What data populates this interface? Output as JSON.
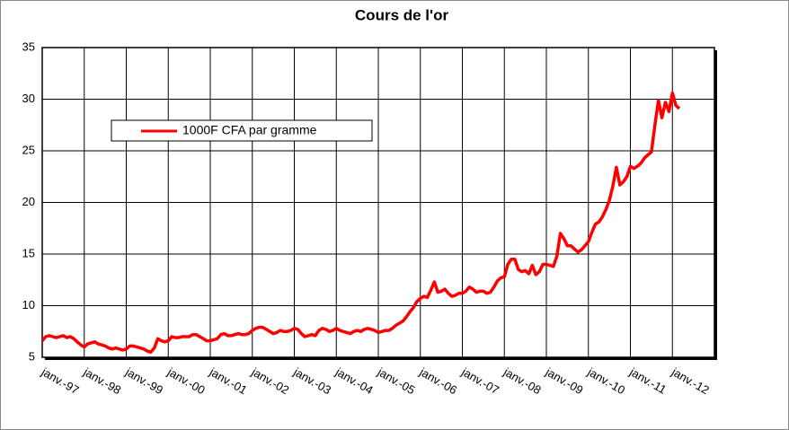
{
  "chart_data": {
    "type": "line",
    "title": "Cours de l'or",
    "categories": [
      "janv.-97",
      null,
      null,
      null,
      null,
      null,
      null,
      null,
      null,
      null,
      null,
      null,
      "janv.-98",
      null,
      null,
      null,
      null,
      null,
      null,
      null,
      null,
      null,
      null,
      null,
      "janv.-99",
      null,
      null,
      null,
      null,
      null,
      null,
      null,
      null,
      null,
      null,
      null,
      "janv.-00",
      null,
      null,
      null,
      null,
      null,
      null,
      null,
      null,
      null,
      null,
      null,
      "janv.-01",
      null,
      null,
      null,
      null,
      null,
      null,
      null,
      null,
      null,
      null,
      null,
      "janv.-02",
      null,
      null,
      null,
      null,
      null,
      null,
      null,
      null,
      null,
      null,
      null,
      "janv.-03",
      null,
      null,
      null,
      null,
      null,
      null,
      null,
      null,
      null,
      null,
      null,
      "janv.-04",
      null,
      null,
      null,
      null,
      null,
      null,
      null,
      null,
      null,
      null,
      null,
      "janv.-05",
      null,
      null,
      null,
      null,
      null,
      null,
      null,
      null,
      null,
      null,
      null,
      "janv.-06",
      null,
      null,
      null,
      null,
      null,
      null,
      null,
      null,
      null,
      null,
      null,
      "janv.-07",
      null,
      null,
      null,
      null,
      null,
      null,
      null,
      null,
      null,
      null,
      null,
      "janv.-08",
      null,
      null,
      null,
      null,
      null,
      null,
      null,
      null,
      null,
      null,
      null,
      "janv.-09",
      null,
      null,
      null,
      null,
      null,
      null,
      null,
      null,
      null,
      null,
      null,
      "janv.-10",
      null,
      null,
      null,
      null,
      null,
      null,
      null,
      null,
      null,
      null,
      null,
      "janv.-11",
      null,
      null,
      null,
      null,
      null,
      null,
      null,
      null,
      null,
      null,
      null,
      "janv.-12",
      null,
      null,
      null,
      null,
      null,
      null,
      null,
      null,
      null,
      null,
      null
    ],
    "series": [
      {
        "name": "1000F CFA par gramme",
        "color": "#ff0000",
        "values": [
          6.6,
          7.0,
          7.1,
          7.0,
          6.9,
          7.0,
          7.1,
          6.9,
          7.0,
          6.8,
          6.5,
          6.2,
          6.0,
          6.3,
          6.4,
          6.5,
          6.3,
          6.2,
          6.1,
          5.9,
          5.8,
          5.9,
          5.8,
          5.7,
          5.8,
          6.1,
          6.1,
          6.0,
          5.9,
          5.8,
          5.6,
          5.5,
          5.9,
          6.8,
          6.6,
          6.5,
          6.6,
          7.0,
          6.9,
          6.9,
          7.0,
          7.0,
          7.0,
          7.2,
          7.2,
          7.0,
          6.8,
          6.6,
          6.6,
          6.7,
          6.8,
          7.2,
          7.3,
          7.1,
          7.1,
          7.2,
          7.3,
          7.2,
          7.2,
          7.3,
          7.6,
          7.8,
          7.9,
          7.9,
          7.7,
          7.5,
          7.3,
          7.4,
          7.6,
          7.5,
          7.5,
          7.6,
          7.8,
          7.7,
          7.3,
          7.0,
          7.1,
          7.2,
          7.1,
          7.6,
          7.8,
          7.7,
          7.5,
          7.6,
          7.8,
          7.6,
          7.5,
          7.4,
          7.3,
          7.5,
          7.6,
          7.5,
          7.7,
          7.8,
          7.7,
          7.6,
          7.4,
          7.5,
          7.6,
          7.6,
          7.8,
          8.1,
          8.3,
          8.5,
          8.9,
          9.4,
          9.8,
          10.4,
          10.7,
          10.9,
          10.8,
          11.5,
          12.3,
          11.3,
          11.4,
          11.6,
          11.2,
          10.9,
          11.0,
          11.2,
          11.2,
          11.4,
          11.8,
          11.6,
          11.3,
          11.4,
          11.4,
          11.2,
          11.3,
          11.8,
          12.4,
          12.7,
          12.8,
          14.0,
          14.5,
          14.5,
          13.5,
          13.3,
          13.4,
          13.1,
          13.9,
          13.0,
          13.3,
          14.0,
          14.0,
          13.9,
          13.8,
          14.8,
          17.0,
          16.5,
          15.8,
          15.8,
          15.5,
          15.2,
          15.4,
          15.8,
          16.2,
          17.1,
          17.9,
          18.1,
          18.6,
          19.3,
          20.2,
          21.6,
          23.4,
          21.7,
          22.0,
          22.5,
          23.5,
          23.3,
          23.5,
          23.8,
          24.3,
          24.6,
          24.9,
          27.5,
          29.9,
          28.2,
          29.7,
          28.8,
          30.6,
          29.4,
          29.1,
          null,
          null,
          null,
          null,
          null,
          null,
          null,
          null,
          null
        ]
      }
    ],
    "ylim": [
      5,
      35
    ],
    "yticks": [
      5,
      10,
      15,
      20,
      25,
      30,
      35
    ],
    "grid": true,
    "legend": "upper left"
  }
}
